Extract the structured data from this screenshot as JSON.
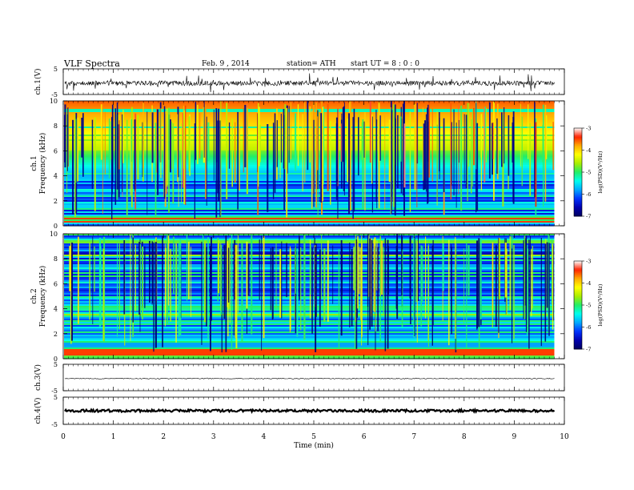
{
  "header": {
    "title": "VLF  Spectra",
    "date": "Feb. 9  , 2014",
    "station": "station= ATH",
    "start": "start  UT  =   8 : 0 : 0"
  },
  "colors": {
    "spectrum_stops": [
      "#000060",
      "#0000b0",
      "#0033ff",
      "#00aaff",
      "#00ffee",
      "#22ee66",
      "#aaee00",
      "#ffff00",
      "#ffaa00",
      "#ff2200",
      "#ffffff"
    ]
  },
  "chart_data": [
    {
      "type": "line",
      "name": "ch1-waveform",
      "ylabel": "ch.1(V)",
      "yticks": [
        "5",
        "-5"
      ],
      "ylim": [
        -5,
        5
      ],
      "baseline": -0.6,
      "x_end_min": 9.8
    },
    {
      "type": "heatmap",
      "name": "ch1-spectrogram",
      "ylabel": "ch.1\nFrequency (kHz)",
      "yticks": [
        "0",
        "2",
        "4",
        "6",
        "8",
        "10"
      ],
      "ylim": [
        0,
        10
      ],
      "xlim": [
        0,
        10
      ],
      "x_end_min": 9.8,
      "colorbar": {
        "label": "log(PSD)(V²/Hz)",
        "ticks": [
          "-3",
          "-4",
          "-5",
          "-6",
          "-7"
        ],
        "range": [
          -7,
          -3
        ]
      }
    },
    {
      "type": "heatmap",
      "name": "ch2-spectrogram",
      "ylabel": "ch.2\nFrequency (kHz)",
      "yticks": [
        "0",
        "2",
        "4",
        "6",
        "8",
        "10"
      ],
      "ylim": [
        0,
        10
      ],
      "xlim": [
        0,
        10
      ],
      "x_end_min": 9.8,
      "colorbar": {
        "label": "log(PSD)(V²/Hz)",
        "ticks": [
          "-3",
          "-4",
          "-5",
          "-6",
          "-7"
        ],
        "range": [
          -7,
          -3
        ]
      }
    },
    {
      "type": "line",
      "name": "ch3-waveform",
      "ylabel": "ch.3(V)",
      "yticks": [
        "5",
        "-5"
      ],
      "ylim": [
        -5,
        5
      ],
      "baseline": -0.4,
      "x_end_min": 9.8
    },
    {
      "type": "line",
      "name": "ch4-waveform",
      "ylabel": "ch.4(V)",
      "yticks": [
        "5",
        "-5"
      ],
      "ylim": [
        -5,
        5
      ],
      "baseline": 0.0,
      "x_end_min": 9.8
    }
  ],
  "xaxis": {
    "label": "Time  (min)",
    "ticks": [
      "0",
      "1",
      "2",
      "3",
      "4",
      "5",
      "6",
      "7",
      "8",
      "9",
      "10"
    ],
    "xlim": [
      0,
      10
    ]
  }
}
